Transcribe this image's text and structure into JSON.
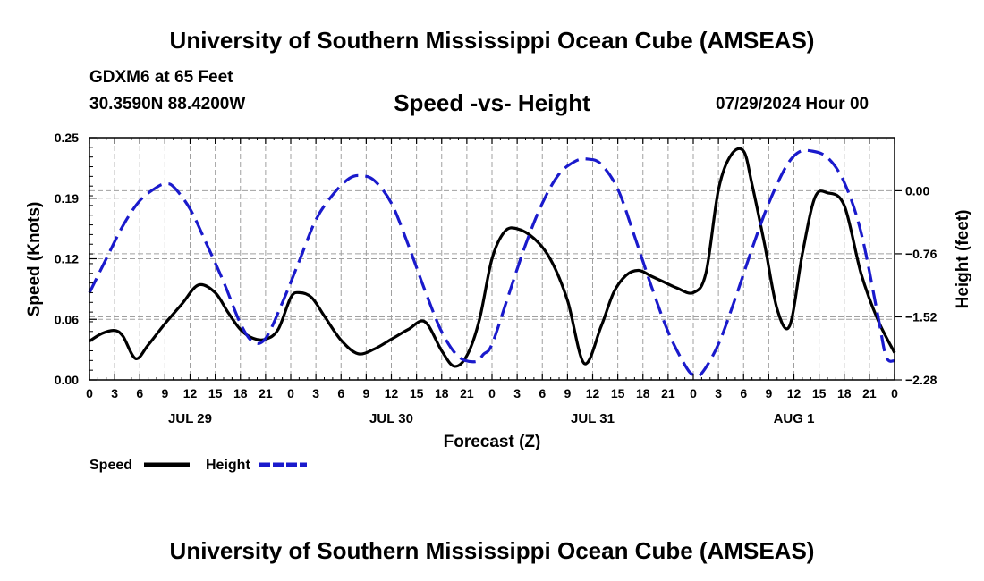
{
  "header": {
    "title": "University of Southern Mississippi Ocean Cube (AMSEAS)",
    "station": "GDXM6 at 65 Feet",
    "coords": "30.3590N  88.4200W",
    "subtitle": "Speed -vs- Height",
    "issue_time": "07/29/2024 Hour 00"
  },
  "footer": {
    "title": "University of Southern Mississippi Ocean Cube (AMSEAS)"
  },
  "colors": {
    "speed": "#000000",
    "height": "#1a1acc",
    "grid": "#a0a0a0"
  },
  "chart_data": {
    "type": "line",
    "title": "Speed -vs- Height",
    "xlabel": "Forecast (Z)",
    "ylabel": "Speed (Knots)",
    "y2label": "Height (feet)",
    "xlim": [
      0,
      96
    ],
    "ylim": [
      0,
      0.25
    ],
    "y2lim": [
      -2.28,
      0.64
    ],
    "x_ticks": [
      0,
      3,
      6,
      9,
      12,
      15,
      18,
      21,
      24,
      27,
      30,
      33,
      36,
      39,
      42,
      45,
      48,
      51,
      54,
      57,
      60,
      63,
      66,
      69,
      72,
      75,
      78,
      81,
      84,
      87,
      90,
      93,
      96
    ],
    "x_tick_labels": [
      "0",
      "3",
      "6",
      "9",
      "12",
      "15",
      "18",
      "21",
      "0",
      "3",
      "6",
      "9",
      "12",
      "15",
      "18",
      "21",
      "0",
      "3",
      "6",
      "9",
      "12",
      "15",
      "18",
      "21",
      "0",
      "3",
      "6",
      "9",
      "12",
      "15",
      "18",
      "21",
      "0"
    ],
    "date_labels": [
      {
        "x": 12,
        "label": "JUL 29"
      },
      {
        "x": 36,
        "label": "JUL 30"
      },
      {
        "x": 60,
        "label": "JUL 31"
      },
      {
        "x": 84,
        "label": "AUG 1"
      }
    ],
    "y_ticks": [
      0.0,
      0.0625,
      0.125,
      0.1875,
      0.25
    ],
    "y_tick_labels": [
      "0.00",
      "0.06",
      "0.12",
      "0.19",
      "0.25"
    ],
    "y2_ticks": [
      0.0,
      -0.76,
      -1.52,
      -2.28
    ],
    "y2_tick_labels": [
      "0.00",
      "−0.76",
      "−1.52",
      "−2.28"
    ],
    "grid": true,
    "legend": {
      "position": "bottom-left",
      "entries": [
        "Speed",
        "Height"
      ]
    },
    "series": [
      {
        "name": "Speed",
        "axis": "left",
        "style": "solid",
        "x": [
          0,
          1.5,
          3,
          4,
          5.5,
          7,
          9,
          11,
          13,
          15,
          16.5,
          18,
          19.5,
          21,
          22.5,
          24,
          25,
          26.5,
          28,
          30,
          32,
          34,
          36,
          38,
          40,
          42,
          43.5,
          45,
          46.5,
          48,
          49.5,
          51,
          53,
          55,
          57,
          59,
          61,
          62.5,
          64,
          65.5,
          67,
          68.5,
          70,
          72,
          73.5,
          75,
          76.5,
          78,
          79,
          80.5,
          82,
          83.5,
          85,
          86.5,
          88,
          90,
          92,
          94,
          96
        ],
        "y": [
          0.04,
          0.048,
          0.051,
          0.045,
          0.022,
          0.036,
          0.058,
          0.078,
          0.098,
          0.09,
          0.07,
          0.052,
          0.043,
          0.042,
          0.052,
          0.085,
          0.09,
          0.085,
          0.066,
          0.041,
          0.027,
          0.032,
          0.042,
          0.052,
          0.06,
          0.03,
          0.014,
          0.025,
          0.062,
          0.125,
          0.153,
          0.156,
          0.146,
          0.124,
          0.082,
          0.017,
          0.055,
          0.09,
          0.108,
          0.113,
          0.107,
          0.101,
          0.095,
          0.09,
          0.11,
          0.196,
          0.232,
          0.236,
          0.202,
          0.14,
          0.073,
          0.056,
          0.13,
          0.188,
          0.193,
          0.18,
          0.11,
          0.062,
          0.028
        ]
      },
      {
        "name": "Height",
        "axis": "right",
        "style": "dashed",
        "x": [
          0,
          2,
          4,
          6,
          8,
          9,
          10,
          12,
          14,
          16,
          18,
          19.5,
          21,
          23,
          25,
          27,
          29,
          31,
          32.5,
          34,
          36,
          38,
          40,
          42,
          44,
          46,
          47,
          48,
          50,
          52,
          54,
          56,
          58,
          59.5,
          61,
          63,
          65,
          67,
          69,
          71,
          72,
          73,
          75,
          77,
          79,
          81,
          83,
          84.5,
          86,
          88,
          90,
          92,
          94,
          95,
          96
        ],
        "y": [
          -1.23,
          -0.82,
          -0.42,
          -0.12,
          0.04,
          0.08,
          0.05,
          -0.22,
          -0.65,
          -1.1,
          -1.6,
          -1.82,
          -1.78,
          -1.35,
          -0.85,
          -0.35,
          -0.05,
          0.15,
          0.18,
          0.12,
          -0.15,
          -0.65,
          -1.2,
          -1.7,
          -2.0,
          -2.06,
          -1.97,
          -1.85,
          -1.25,
          -0.65,
          -0.15,
          0.2,
          0.36,
          0.38,
          0.32,
          0.02,
          -0.55,
          -1.15,
          -1.7,
          -2.1,
          -2.22,
          -2.2,
          -1.85,
          -1.3,
          -0.7,
          -0.15,
          0.28,
          0.46,
          0.48,
          0.4,
          0.1,
          -0.5,
          -1.5,
          -2.0,
          -2.05
        ]
      }
    ]
  }
}
